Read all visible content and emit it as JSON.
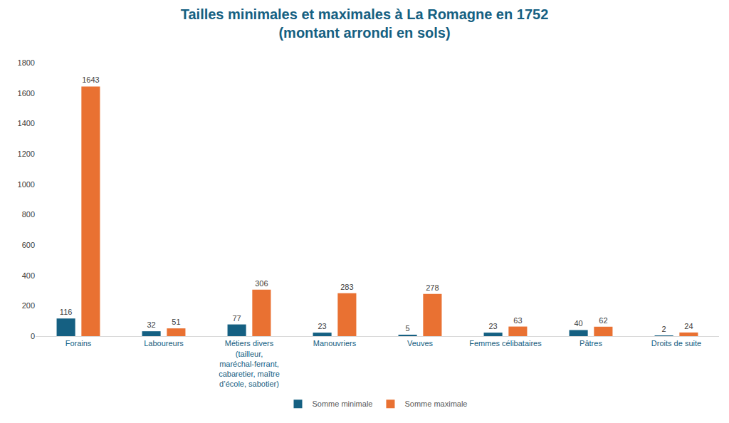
{
  "chart_data": {
    "type": "bar",
    "title": "Tailles minimales et maximales à La Romagne en 1752",
    "subtitle": "(montant arrondi en sols)",
    "categories": [
      "Forains",
      "Laboureurs",
      "Métiers divers (tailleur, maréchal-ferrant, cabaretier, maître d’école, sabotier)",
      "Manouvriers",
      "Veuves",
      "Femmes célibataires",
      "Pâtres",
      "Droits de suite"
    ],
    "series": [
      {
        "name": "Somme minimale",
        "color": "#156082",
        "values": [
          116,
          32,
          77,
          23,
          5,
          23,
          40,
          2
        ]
      },
      {
        "name": "Somme maximale",
        "color": "#e97132",
        "values": [
          1643,
          51,
          306,
          283,
          278,
          63,
          62,
          24
        ]
      }
    ],
    "ylim": [
      0,
      1800
    ],
    "yticks": [
      0,
      200,
      400,
      600,
      800,
      1000,
      1200,
      1400,
      1600,
      1800
    ],
    "grid": false,
    "legend": "bottom",
    "data_labels": true
  }
}
